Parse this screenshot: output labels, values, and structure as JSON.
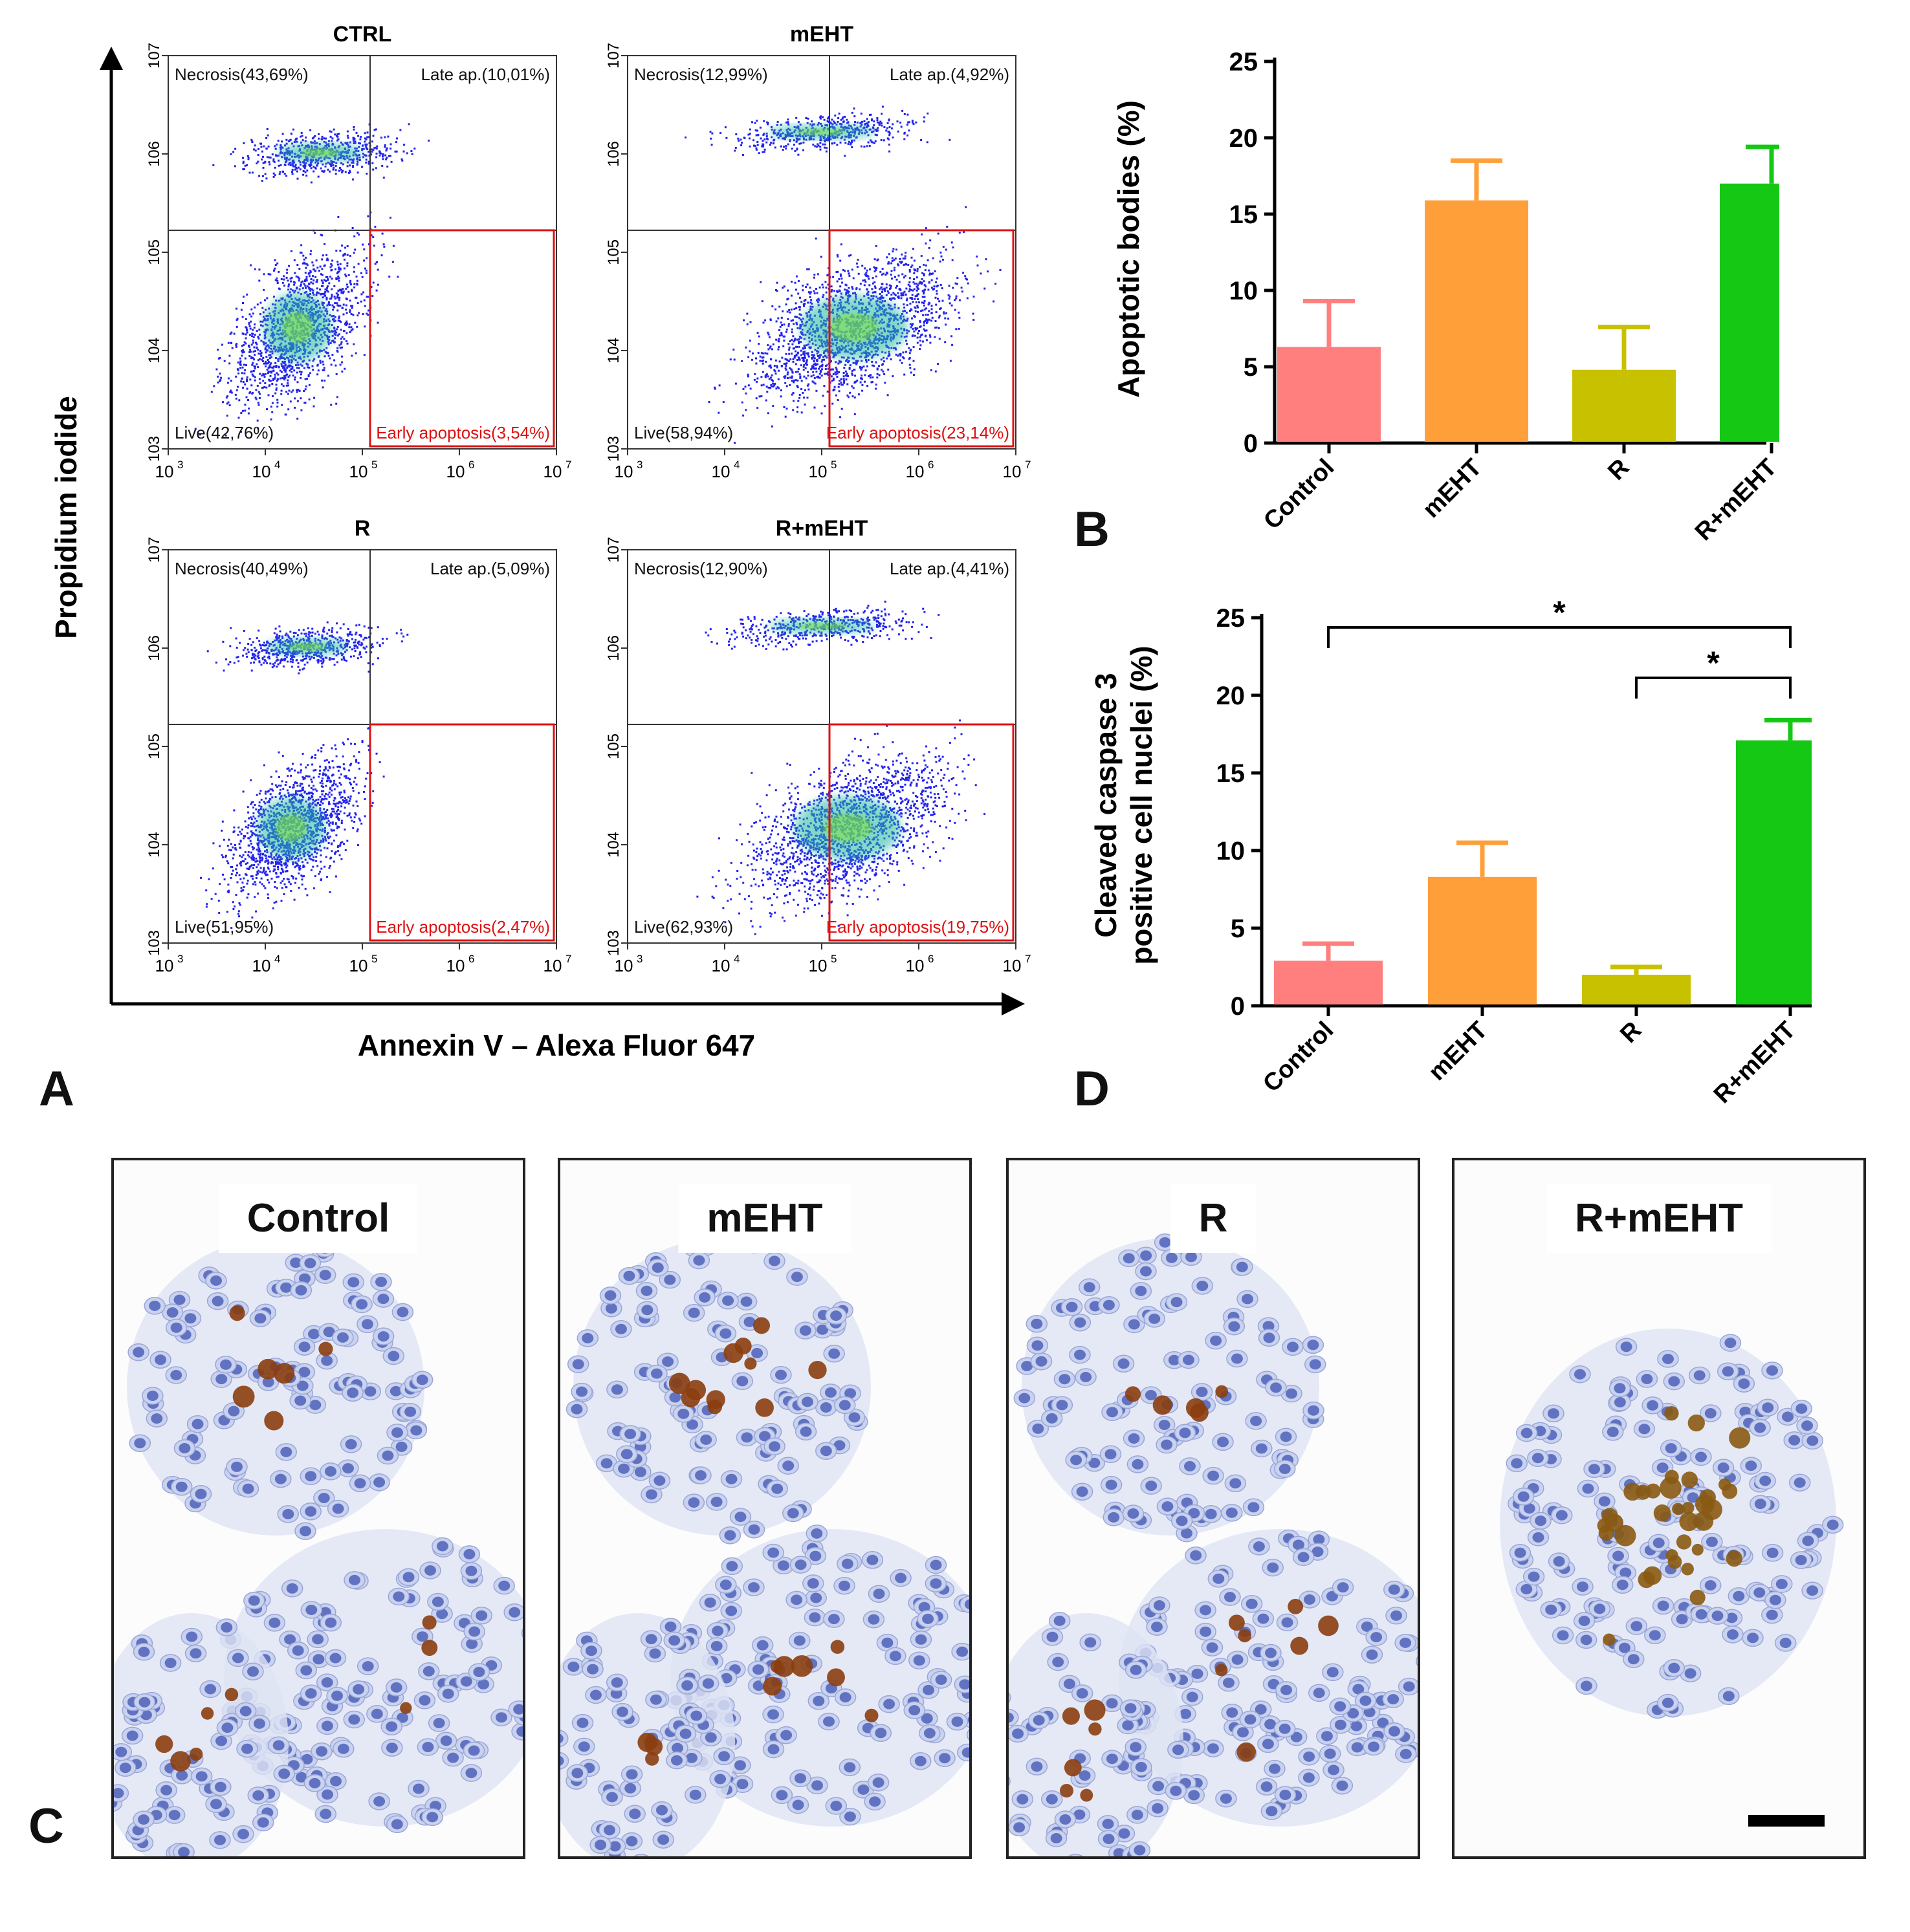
{
  "panel_letters": {
    "a": "A",
    "b": "B",
    "c": "C",
    "d": "D"
  },
  "flow": {
    "y_axis_label": "Propidium iodide",
    "x_axis_label": "Annexin V – Alexa Fluor 647",
    "tick_labels": [
      "10",
      "10",
      "10",
      "10",
      "10"
    ],
    "tick_exponents": [
      "3",
      "4",
      "5",
      "6",
      "7"
    ],
    "plots": [
      {
        "title": "CTRL",
        "necrosis": "Necrosis(43,69%)",
        "late": "Late ap.(10,01%)",
        "live": "Live(42,76%)",
        "early": "Early apoptosis(3,54%)"
      },
      {
        "title": "mEHT",
        "necrosis": "Necrosis(12,99%)",
        "late": "Late ap.(4,92%)",
        "live": "Live(58,94%)",
        "early": "Early apoptosis(23,14%)"
      },
      {
        "title": "R",
        "necrosis": "Necrosis(40,49%)",
        "late": "Late ap.(5,09%)",
        "live": "Live(51,95%)",
        "early": "Early apoptosis(2,47%)"
      },
      {
        "title": "R+mEHT",
        "necrosis": "Necrosis(12,90%)",
        "late": "Late ap.(4,41%)",
        "live": "Live(62,93%)",
        "early": "Early apoptosis(19,75%)"
      }
    ]
  },
  "chart_data": [
    {
      "type": "bar",
      "panel": "B",
      "ylabel": "Apoptotic bodies (%)",
      "categories": [
        "Control",
        "mEHT",
        "R",
        "R+mEHT"
      ],
      "values": [
        6.3,
        15.9,
        4.8,
        17.0
      ],
      "errors": [
        3.0,
        2.6,
        2.8,
        2.4
      ],
      "colors": [
        "#ff7f7f",
        "#ff9f3a",
        "#c8c100",
        "#14c814"
      ],
      "ylim": [
        0,
        25
      ],
      "yticks": [
        "0",
        "5",
        "10",
        "15",
        "20",
        "25"
      ]
    },
    {
      "type": "bar",
      "panel": "D",
      "ylabel_line1": "Cleaved caspase 3",
      "ylabel_line2": "positive cell nuclei (%)",
      "categories": [
        "Control",
        "mEHT",
        "R",
        "R+mEHT"
      ],
      "values": [
        2.9,
        8.3,
        2.0,
        17.1
      ],
      "errors": [
        1.1,
        2.2,
        0.5,
        1.3
      ],
      "colors": [
        "#ff7f7f",
        "#ff9f3a",
        "#c8c100",
        "#14c814"
      ],
      "ylim": [
        0,
        25
      ],
      "yticks": [
        "0",
        "5",
        "10",
        "15",
        "20",
        "25"
      ],
      "significance": [
        {
          "from": "Control",
          "to": "R+mEHT",
          "label": "*"
        },
        {
          "from": "R",
          "to": "R+mEHT",
          "label": "*"
        }
      ]
    }
  ],
  "micrographs": [
    "Control",
    "mEHT",
    "R",
    "R+mEHT"
  ]
}
